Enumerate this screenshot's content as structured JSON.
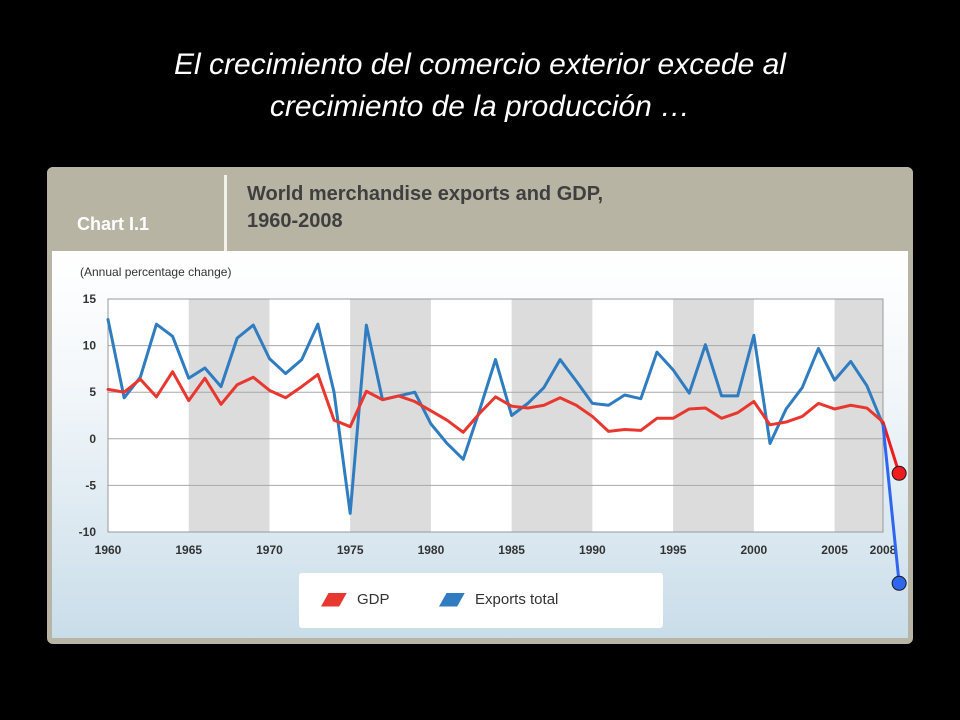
{
  "slide": {
    "title_line1": "El crecimiento del comercio exterior excede al",
    "title_line2": "crecimiento de la producción …"
  },
  "panel": {
    "chart_id": "Chart I.1",
    "title_line1": "World merchandise exports and GDP,",
    "title_line2": "1960-2008"
  },
  "colors": {
    "gdp": "#e8372f",
    "exports": "#2f7cc0",
    "gdp_marker": "#ee1c1c",
    "exports_marker": "#2f66f0",
    "band": "#dcdcdc"
  },
  "chart_data": {
    "type": "line",
    "title": "World merchandise exports and GDP, 1960-2008",
    "ylabel": "(Annual percentage change)",
    "xlabel": "",
    "xlim": [
      1960,
      2008
    ],
    "ylim": [
      -10,
      15
    ],
    "yticks": [
      15,
      10,
      5,
      0,
      -5,
      -10
    ],
    "xticks": [
      1960,
      1965,
      1970,
      1975,
      1980,
      1985,
      1990,
      1995,
      2000,
      2005,
      2008
    ],
    "grid": true,
    "legend_position": "bottom",
    "x": [
      1960,
      1961,
      1962,
      1963,
      1964,
      1965,
      1966,
      1967,
      1968,
      1969,
      1970,
      1971,
      1972,
      1973,
      1974,
      1975,
      1976,
      1977,
      1978,
      1979,
      1980,
      1981,
      1982,
      1983,
      1984,
      1985,
      1986,
      1987,
      1988,
      1989,
      1990,
      1991,
      1992,
      1993,
      1994,
      1995,
      1996,
      1997,
      1998,
      1999,
      2000,
      2001,
      2002,
      2003,
      2004,
      2005,
      2006,
      2007,
      2008
    ],
    "series": [
      {
        "name": "GDP",
        "values": [
          5.3,
          5.0,
          6.4,
          4.5,
          7.2,
          4.1,
          6.5,
          3.7,
          5.8,
          6.6,
          5.2,
          4.4,
          5.6,
          6.9,
          2.0,
          1.3,
          5.1,
          4.2,
          4.6,
          4.0,
          3.0,
          2.0,
          0.7,
          2.7,
          4.5,
          3.5,
          3.3,
          3.6,
          4.4,
          3.6,
          2.4,
          0.8,
          1.0,
          0.9,
          2.2,
          2.2,
          3.2,
          3.3,
          2.2,
          2.8,
          4.0,
          1.5,
          1.8,
          2.4,
          3.8,
          3.2,
          3.6,
          3.3,
          1.8
        ]
      },
      {
        "name": "Exports total",
        "values": [
          12.8,
          4.4,
          6.6,
          12.3,
          11.0,
          6.5,
          7.6,
          5.6,
          10.8,
          12.2,
          8.6,
          7.0,
          8.5,
          12.3,
          5.0,
          -8.0,
          12.2,
          4.2,
          4.6,
          5.0,
          1.6,
          -0.5,
          -2.2,
          3.0,
          8.5,
          2.5,
          3.8,
          5.5,
          8.5,
          6.2,
          3.8,
          3.6,
          4.7,
          4.3,
          9.3,
          7.4,
          4.9,
          10.1,
          4.6,
          4.6,
          11.1,
          -0.5,
          3.2,
          5.5,
          9.7,
          6.3,
          8.3,
          5.7,
          1.5
        ]
      }
    ],
    "annotations": [
      {
        "series": "GDP",
        "from_year": 2008,
        "to_year": 2009,
        "to_value": -3.7
      },
      {
        "series": "Exports total",
        "from_year": 2008,
        "to_year": 2009,
        "to_value": -15.5
      }
    ]
  }
}
